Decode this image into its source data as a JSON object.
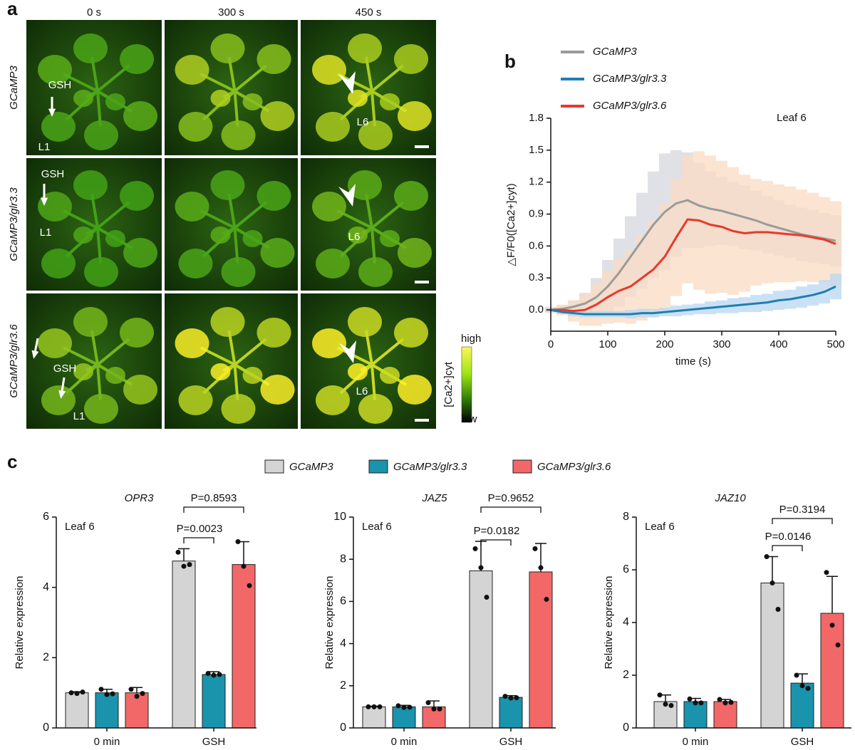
{
  "panel_a": {
    "label": "a",
    "columns": [
      "0 s",
      "300 s",
      "450 s"
    ],
    "rows": [
      {
        "label": "GCaMP3",
        "annotations": [
          "GSH",
          "L1",
          "L6"
        ]
      },
      {
        "label": "GCaMP3/glr3.3",
        "annotations": [
          "GSH",
          "L1",
          "L6"
        ]
      },
      {
        "label": "GCaMP3/glr3.6",
        "annotations": [
          "GSH",
          "L1",
          "L6"
        ]
      }
    ],
    "colorbar": {
      "high": "high",
      "low": "low",
      "label": "[Ca2+]cyt"
    }
  },
  "panel_b_label": "b",
  "panel_c_label": "c",
  "chart_data": [
    {
      "type": "line",
      "annotation": "Leaf 6",
      "xlabel": "time (s)",
      "ylabel": "△F/F0([Ca2+]cyt)",
      "xlim": [
        0,
        500
      ],
      "xticks": [
        0,
        100,
        200,
        300,
        400,
        500
      ],
      "ylim": [
        -0.2,
        1.8
      ],
      "yticks": [
        {
          "value": 0,
          "label": "0.0"
        },
        0.3,
        0.6,
        0.9,
        1.2,
        1.5,
        1.8
      ],
      "x": [
        0,
        20,
        40,
        60,
        80,
        100,
        120,
        140,
        160,
        180,
        200,
        220,
        240,
        260,
        280,
        300,
        320,
        340,
        360,
        380,
        400,
        420,
        440,
        460,
        480,
        500
      ],
      "series": [
        {
          "name": "GCaMP3",
          "color": "#9a9a9a",
          "band_color": "#d5d8de",
          "values": [
            0,
            0.01,
            0.03,
            0.06,
            0.12,
            0.22,
            0.35,
            0.5,
            0.65,
            0.8,
            0.92,
            1.0,
            1.03,
            0.98,
            0.95,
            0.93,
            0.9,
            0.87,
            0.84,
            0.8,
            0.77,
            0.74,
            0.71,
            0.69,
            0.67,
            0.65
          ],
          "errors": [
            0.02,
            0.03,
            0.06,
            0.1,
            0.18,
            0.25,
            0.32,
            0.38,
            0.45,
            0.5,
            0.55,
            0.5,
            0.45,
            0.4,
            0.35,
            0.32,
            0.3,
            0.3,
            0.28,
            0.27,
            0.26,
            0.25,
            0.25,
            0.25,
            0.24,
            0.24
          ]
        },
        {
          "name": "GCaMP3/glr3.3",
          "color": "#1f7fb0",
          "band_color": "#b9d8f2",
          "values": [
            0,
            -0.02,
            -0.03,
            -0.04,
            -0.04,
            -0.04,
            -0.04,
            -0.04,
            -0.03,
            -0.03,
            -0.02,
            -0.01,
            0,
            0.01,
            0.02,
            0.03,
            0.04,
            0.05,
            0.06,
            0.07,
            0.09,
            0.1,
            0.12,
            0.14,
            0.17,
            0.22
          ],
          "errors": [
            0.02,
            0.02,
            0.03,
            0.03,
            0.03,
            0.03,
            0.03,
            0.04,
            0.04,
            0.04,
            0.04,
            0.05,
            0.05,
            0.05,
            0.06,
            0.06,
            0.07,
            0.07,
            0.08,
            0.08,
            0.09,
            0.09,
            0.1,
            0.1,
            0.11,
            0.12
          ]
        },
        {
          "name": "GCaMP3/glr3.6",
          "color": "#e8392c",
          "band_color": "#fbdcc4",
          "values": [
            0,
            0,
            -0.01,
            0,
            0.05,
            0.12,
            0.18,
            0.22,
            0.3,
            0.38,
            0.5,
            0.68,
            0.85,
            0.84,
            0.8,
            0.78,
            0.74,
            0.72,
            0.73,
            0.73,
            0.72,
            0.71,
            0.7,
            0.68,
            0.66,
            0.62
          ],
          "errors": [
            0.03,
            0.05,
            0.1,
            0.15,
            0.2,
            0.25,
            0.3,
            0.35,
            0.4,
            0.45,
            0.5,
            0.55,
            0.6,
            0.65,
            0.65,
            0.62,
            0.6,
            0.55,
            0.5,
            0.48,
            0.46,
            0.45,
            0.43,
            0.42,
            0.4,
            0.4
          ]
        }
      ]
    },
    {
      "type": "bar",
      "title": "OPR3",
      "annotation": "Leaf 6",
      "ylabel": "Relative expression",
      "categories": [
        "0 min",
        "GSH"
      ],
      "ylim": [
        0,
        6
      ],
      "yticks": [
        0,
        2,
        4,
        6
      ],
      "p_values": [
        "P=0.0023",
        "P=0.8593"
      ],
      "series": [
        {
          "name": "GCaMP3",
          "color": "#d4d4d4",
          "values": [
            1.0,
            4.75
          ],
          "errors": [
            0.03,
            0.35
          ],
          "points": [
            [
              1.0,
              0.98,
              1.02
            ],
            [
              5.0,
              4.6,
              4.65
            ]
          ]
        },
        {
          "name": "GCaMP3/glr3.3",
          "color": "#1a93ad",
          "values": [
            1.0,
            1.52
          ],
          "errors": [
            0.1,
            0.08
          ],
          "points": [
            [
              1.1,
              0.95,
              0.97
            ],
            [
              1.55,
              1.5,
              1.52
            ]
          ]
        },
        {
          "name": "GCaMP3/glr3.6",
          "color": "#f26868",
          "values": [
            1.0,
            4.65
          ],
          "errors": [
            0.15,
            0.65
          ],
          "points": [
            [
              1.1,
              0.9,
              0.98
            ],
            [
              5.3,
              4.6,
              4.05
            ]
          ]
        }
      ]
    },
    {
      "type": "bar",
      "title": "JAZ5",
      "annotation": "Leaf 6",
      "ylabel": "Relative expression",
      "categories": [
        "0 min",
        "GSH"
      ],
      "ylim": [
        0,
        10
      ],
      "yticks": [
        0,
        2,
        4,
        6,
        8,
        10
      ],
      "p_values": [
        "P=0.0182",
        "P=0.9652"
      ],
      "series": [
        {
          "color": "#d4d4d4",
          "values": [
            1.0,
            7.45
          ],
          "errors": [
            0.03,
            1.4
          ],
          "points": [
            [
              1.0,
              1.0,
              1.0
            ],
            [
              8.5,
              7.6,
              6.2
            ]
          ]
        },
        {
          "color": "#1a93ad",
          "values": [
            1.0,
            1.45
          ],
          "errors": [
            0.07,
            0.08
          ],
          "points": [
            [
              1.05,
              0.97,
              0.98
            ],
            [
              1.5,
              1.42,
              1.43
            ]
          ]
        },
        {
          "color": "#f26868",
          "values": [
            1.0,
            7.4
          ],
          "errors": [
            0.28,
            1.35
          ],
          "points": [
            [
              1.2,
              0.9,
              0.9
            ],
            [
              8.5,
              7.6,
              6.1
            ]
          ]
        }
      ]
    },
    {
      "type": "bar",
      "title": "JAZ10",
      "annotation": "Leaf 6",
      "ylabel": "Relative expression",
      "categories": [
        "0 min",
        "GSH"
      ],
      "ylim": [
        0,
        8
      ],
      "yticks": [
        0,
        2,
        4,
        6,
        8
      ],
      "p_values": [
        "P=0.0146",
        "P=0.3194"
      ],
      "series": [
        {
          "color": "#d4d4d4",
          "values": [
            1.0,
            5.5
          ],
          "errors": [
            0.25,
            1.0
          ],
          "points": [
            [
              1.25,
              0.9,
              0.85
            ],
            [
              6.5,
              5.5,
              4.5
            ]
          ]
        },
        {
          "color": "#1a93ad",
          "values": [
            1.0,
            1.7
          ],
          "errors": [
            0.12,
            0.35
          ],
          "points": [
            [
              1.1,
              0.95,
              0.95
            ],
            [
              2.0,
              1.6,
              1.5
            ]
          ]
        },
        {
          "color": "#f26868",
          "values": [
            1.0,
            4.35
          ],
          "errors": [
            0.08,
            1.4
          ],
          "points": [
            [
              1.08,
              0.95,
              0.97
            ],
            [
              5.9,
              3.9,
              3.15
            ]
          ]
        }
      ]
    }
  ]
}
